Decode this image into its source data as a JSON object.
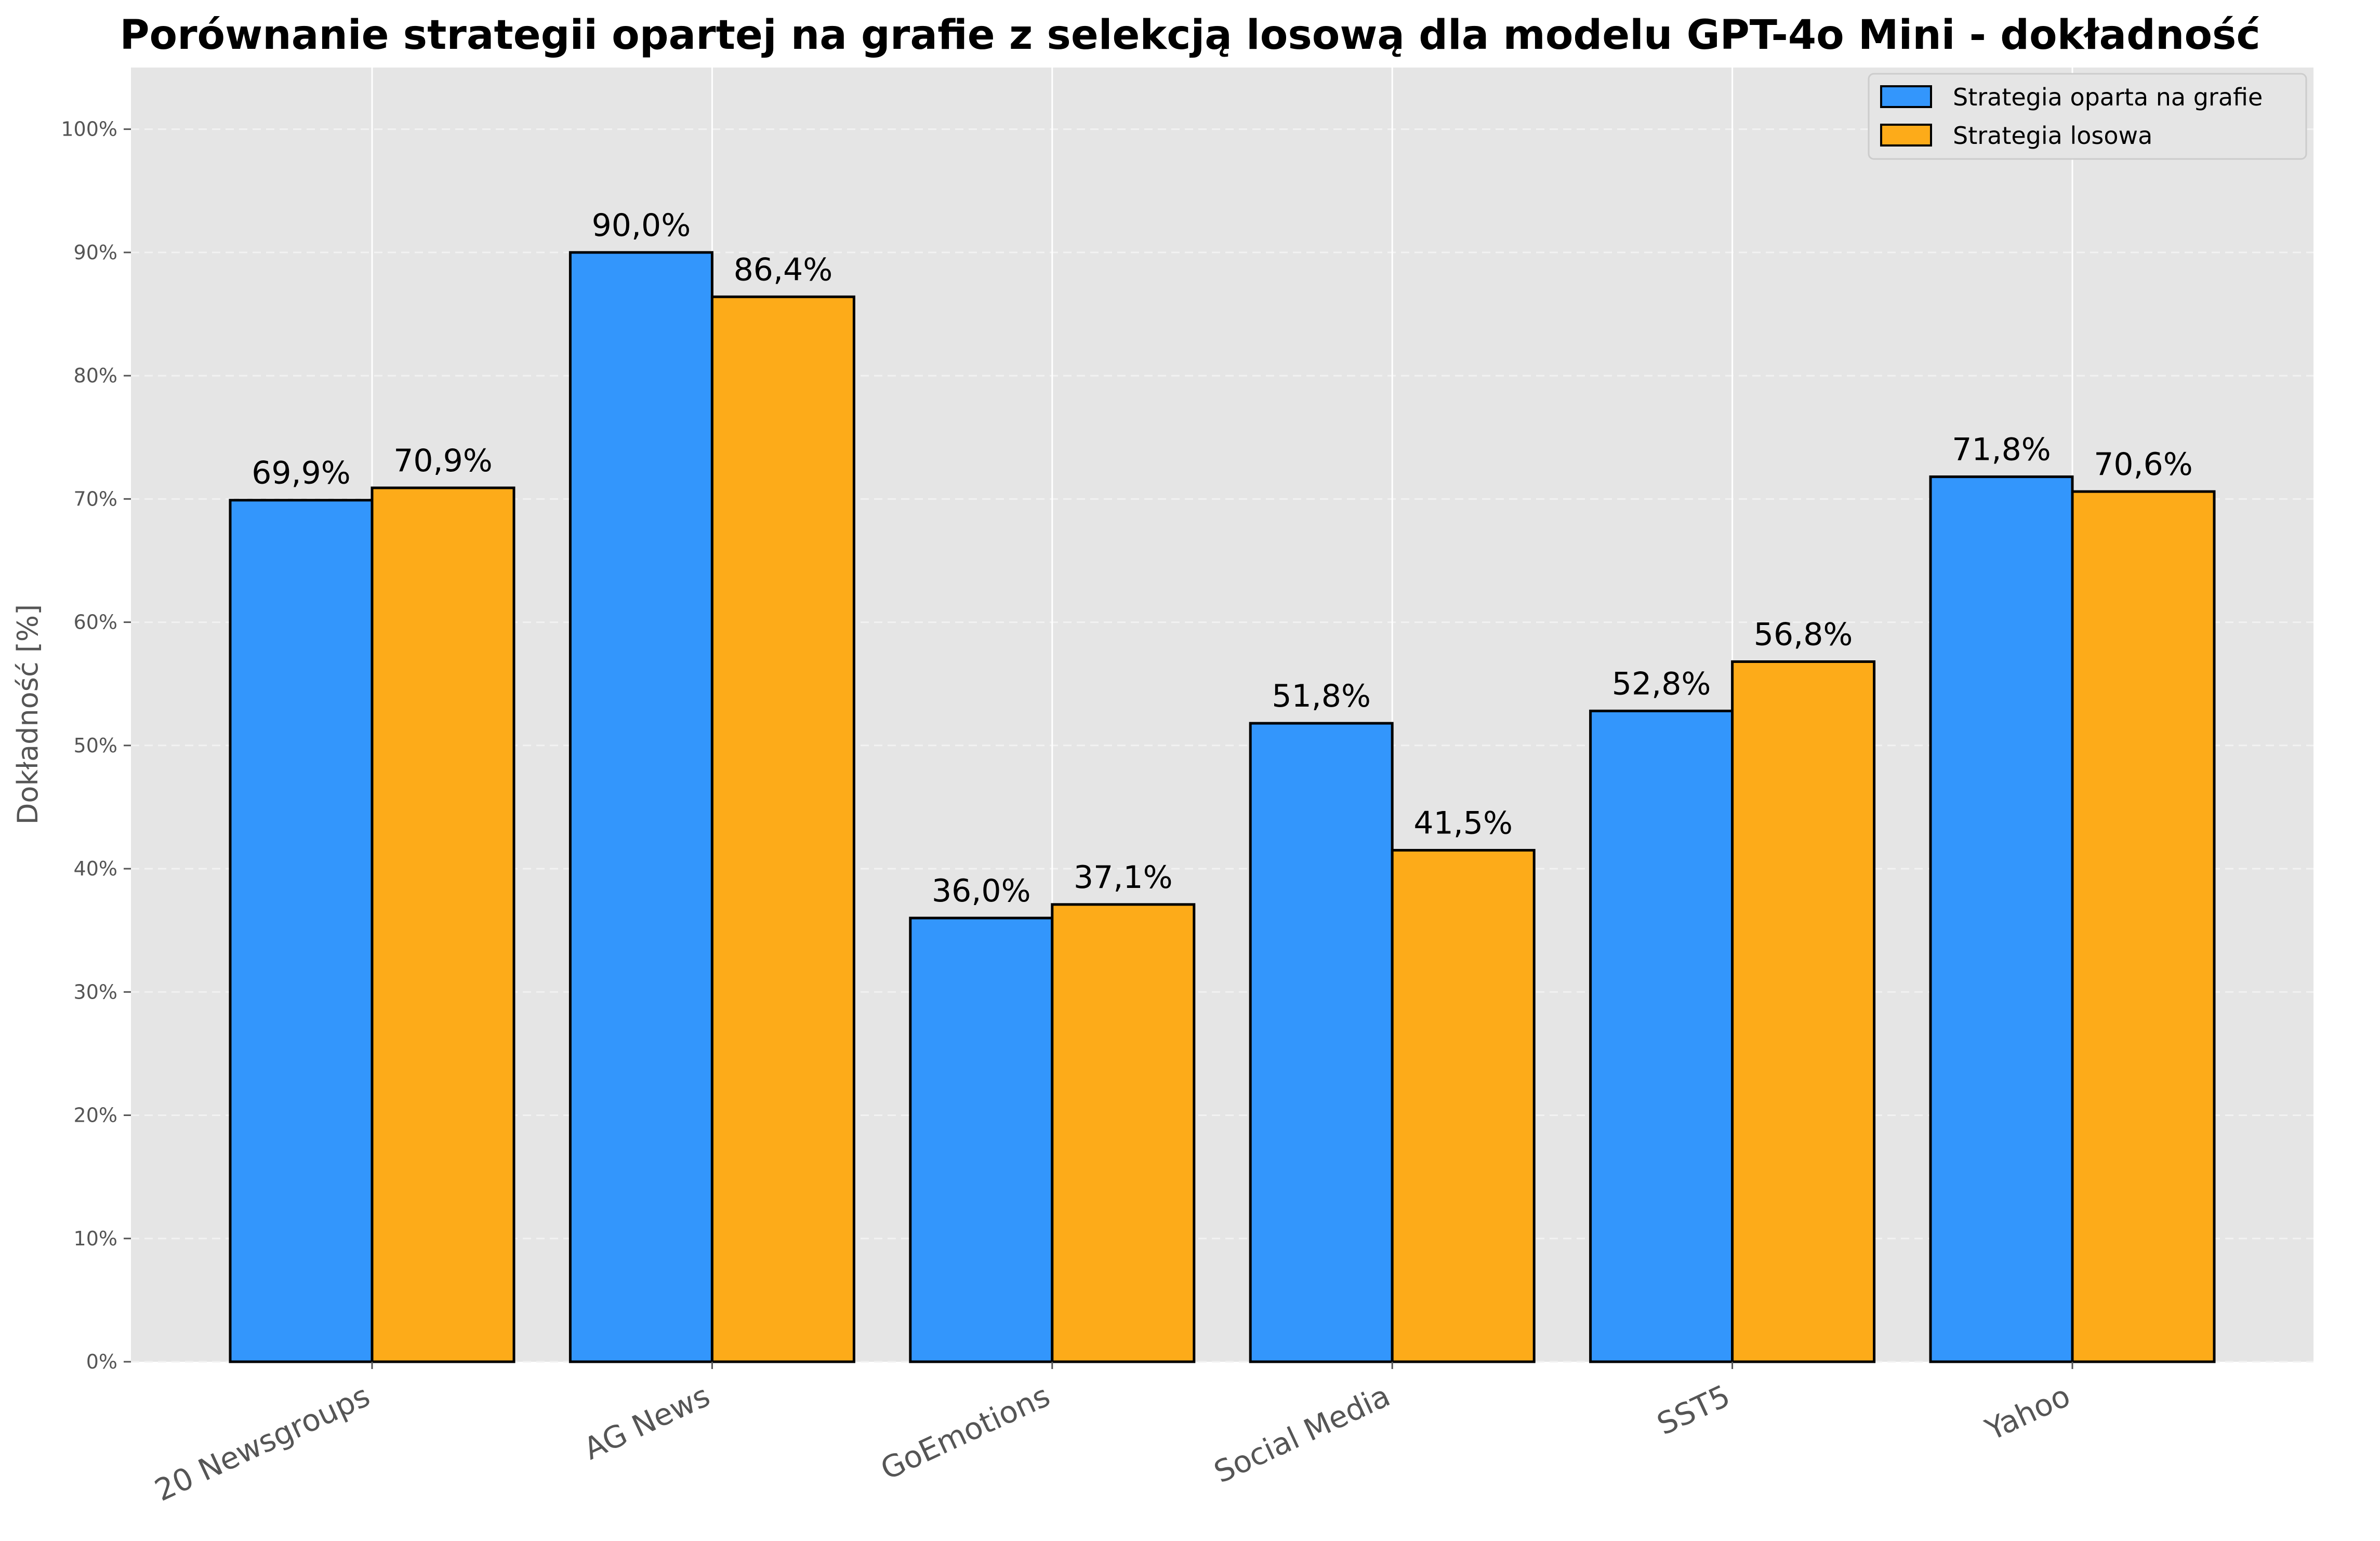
{
  "chart_data": {
    "type": "bar",
    "title": "Porównanie strategii opartej na grafie z selekcją losową dla modelu GPT-4o Mini - dokładność",
    "ylabel": "Dokładność [%]",
    "xlabel": "",
    "categories": [
      "20 Newsgroups",
      "AG News",
      "GoEmotions",
      "Social Media",
      "SST5",
      "Yahoo"
    ],
    "series": [
      {
        "name": "Strategia oparta na grafie",
        "color": "#3396fc",
        "values": [
          69.9,
          90.0,
          36.0,
          51.8,
          52.8,
          71.8
        ],
        "labels": [
          "69,9%",
          "90,0%",
          "36,0%",
          "51,8%",
          "52,8%",
          "71,8%"
        ]
      },
      {
        "name": "Strategia losowa",
        "color": "#fdab19",
        "values": [
          70.9,
          86.4,
          37.1,
          41.5,
          56.8,
          70.6
        ],
        "labels": [
          "70,9%",
          "86,4%",
          "37,1%",
          "41,5%",
          "56,8%",
          "70,6%"
        ]
      }
    ],
    "ylim": [
      0,
      105
    ],
    "yticks": [
      0,
      10,
      20,
      30,
      40,
      50,
      60,
      70,
      80,
      90,
      100
    ],
    "ytick_labels": [
      "0%",
      "10%",
      "20%",
      "30%",
      "40%",
      "50%",
      "60%",
      "70%",
      "80%",
      "90%",
      "100%"
    ],
    "grid": true,
    "background": "#e5e5e5",
    "legend_position": "top-right"
  }
}
